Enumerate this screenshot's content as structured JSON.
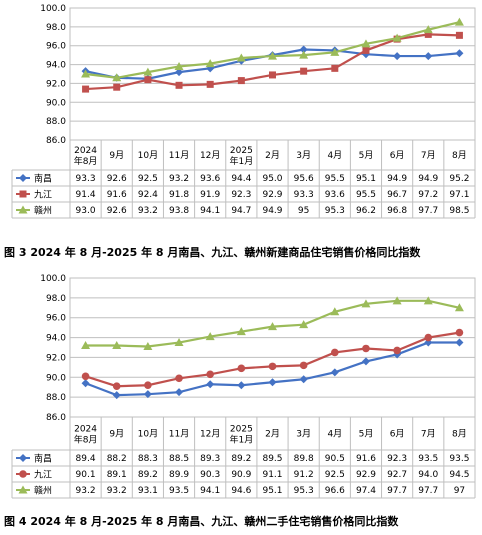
{
  "chart_data": [
    {
      "type": "line",
      "title": "图 3 2024 年 8 月-2025 年 8 月南昌、九江、赣州新建商品住宅销售价格同比指数",
      "categories": [
        "2024\n年8月",
        "9月",
        "10月",
        "11月",
        "12月",
        "2025\n年1月",
        "2月",
        "3月",
        "4月",
        "5月",
        "6月",
        "7月",
        "8月"
      ],
      "ylim": [
        86.0,
        100.0
      ],
      "yticks": [
        "86.0",
        "88.0",
        "90.0",
        "92.0",
        "94.0",
        "96.0",
        "98.0",
        "100.0"
      ],
      "grid": true,
      "legend": "data-table",
      "series": [
        {
          "name": "南昌",
          "color": "#4472c4",
          "marker": "diamond",
          "values": [
            93.3,
            92.6,
            92.5,
            93.2,
            93.6,
            94.4,
            95.0,
            95.6,
            95.5,
            95.1,
            94.9,
            94.9,
            95.2
          ],
          "labels": [
            "93.3",
            "92.6",
            "92.5",
            "93.2",
            "93.6",
            "94.4",
            "95.0",
            "95.6",
            "95.5",
            "95.1",
            "94.9",
            "94.9",
            "95.2"
          ]
        },
        {
          "name": "九江",
          "color": "#c0504d",
          "marker": "square",
          "values": [
            91.4,
            91.6,
            92.4,
            91.8,
            91.9,
            92.3,
            92.9,
            93.3,
            93.6,
            95.5,
            96.7,
            97.2,
            97.1
          ],
          "labels": [
            "91.4",
            "91.6",
            "92.4",
            "91.8",
            "91.9",
            "92.3",
            "92.9",
            "93.3",
            "93.6",
            "95.5",
            "96.7",
            "97.2",
            "97.1"
          ]
        },
        {
          "name": "赣州",
          "color": "#9bbb59",
          "marker": "triangle",
          "values": [
            93.0,
            92.6,
            93.2,
            93.8,
            94.1,
            94.7,
            94.9,
            95,
            95.3,
            96.2,
            96.8,
            97.7,
            98.5
          ],
          "labels": [
            "93.0",
            "92.6",
            "93.2",
            "93.8",
            "94.1",
            "94.7",
            "94.9",
            "95",
            "95.3",
            "96.2",
            "96.8",
            "97.7",
            "98.5"
          ]
        }
      ]
    },
    {
      "type": "line",
      "title": "图 4 2024 年 8 月-2025 年 8 月南昌、九江、赣州二手住宅销售价格同比指数",
      "categories": [
        "2024\n年8月",
        "9月",
        "10月",
        "11月",
        "12月",
        "2025\n年1月",
        "2月",
        "3月",
        "4月",
        "5月",
        "6月",
        "7月",
        "8月"
      ],
      "ylim": [
        86.0,
        100.0
      ],
      "yticks": [
        "86.0",
        "88.0",
        "90.0",
        "92.0",
        "94.0",
        "96.0",
        "98.0",
        "100.0"
      ],
      "grid": true,
      "legend": "data-table",
      "series": [
        {
          "name": "南昌",
          "color": "#4472c4",
          "marker": "diamond",
          "values": [
            89.4,
            88.2,
            88.3,
            88.5,
            89.3,
            89.2,
            89.5,
            89.8,
            90.5,
            91.6,
            92.3,
            93.5,
            93.5
          ],
          "labels": [
            "89.4",
            "88.2",
            "88.3",
            "88.5",
            "89.3",
            "89.2",
            "89.5",
            "89.8",
            "90.5",
            "91.6",
            "92.3",
            "93.5",
            "93.5"
          ]
        },
        {
          "name": "九江",
          "color": "#c0504d",
          "marker": "circle",
          "values": [
            90.1,
            89.1,
            89.2,
            89.9,
            90.3,
            90.9,
            91.1,
            91.2,
            92.5,
            92.9,
            92.7,
            94.0,
            94.5
          ],
          "labels": [
            "90.1",
            "89.1",
            "89.2",
            "89.9",
            "90.3",
            "90.9",
            "91.1",
            "91.2",
            "92.5",
            "92.9",
            "92.7",
            "94.0",
            "94.5"
          ]
        },
        {
          "name": "赣州",
          "color": "#9bbb59",
          "marker": "triangle",
          "values": [
            93.2,
            93.2,
            93.1,
            93.5,
            94.1,
            94.6,
            95.1,
            95.3,
            96.6,
            97.4,
            97.7,
            97.7,
            97
          ],
          "labels": [
            "93.2",
            "93.2",
            "93.1",
            "93.5",
            "94.1",
            "94.6",
            "95.1",
            "95.3",
            "96.6",
            "97.4",
            "97.7",
            "97.7",
            "97"
          ]
        }
      ]
    }
  ]
}
